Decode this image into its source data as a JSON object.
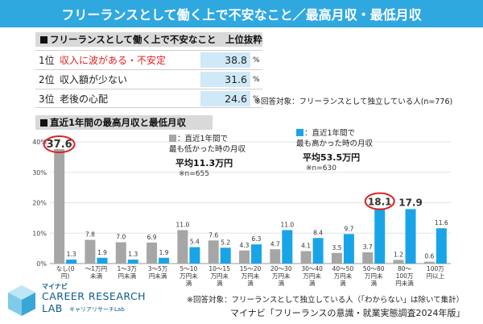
{
  "banner": {
    "title": "フリーランスとして働く上で不安なこと／最高月収・最低月収"
  },
  "ranking": {
    "heading": "フリーランスとして働く上で不安なこと　上位抜粋",
    "rows": [
      {
        "rank": "1位",
        "label": "収入に波がある・不安定",
        "value": "38.8",
        "unit": "%"
      },
      {
        "rank": "2位",
        "label": "収入額が少ない",
        "value": "31.6",
        "unit": "%"
      },
      {
        "rank": "3位",
        "label": "老後の心配",
        "value": "24.6",
        "unit": "%"
      }
    ],
    "note": "※回答対象：フリーランスとして独立している人(n=776)"
  },
  "chart_section": {
    "heading": "直近1年間の最高月収と最低月収"
  },
  "chart_data": {
    "type": "bar",
    "title": "直近1年間の最高月収と最低月収",
    "categories": [
      [
        "なし(0",
        "円)"
      ],
      [
        "～1万円",
        "未満"
      ],
      [
        "1～3万",
        "円未満"
      ],
      [
        "3～5万",
        "円未満"
      ],
      [
        "5～10",
        "万円未",
        "満"
      ],
      [
        "10～15",
        "万円未",
        "満"
      ],
      [
        "15～20",
        "万円未",
        "満"
      ],
      [
        "20～30",
        "万円未",
        "満"
      ],
      [
        "30～40",
        "万円未",
        "満"
      ],
      [
        "40～50",
        "万円未",
        "満"
      ],
      [
        "50～80",
        "万円未",
        "満"
      ],
      [
        "80～",
        "100万",
        "円未満"
      ],
      [
        "100万",
        "円以上"
      ]
    ],
    "series": [
      {
        "name": "直近1年間で最も低かった時の月収",
        "color": "#a6a6a6",
        "values": [
          37.6,
          7.8,
          7.0,
          6.9,
          11.0,
          7.6,
          4.3,
          4.7,
          4.1,
          3.5,
          3.7,
          1.2,
          0.6
        ],
        "labels": [
          "37.6",
          "7.8",
          "7.0",
          "6.9",
          "11.0",
          "7.6",
          "4.3",
          "4.7",
          "4.1",
          "3.5",
          "3.7",
          "1.2",
          "0.6"
        ]
      },
      {
        "name": "直近1年間で最も高かった時の月収",
        "color": "#19a4e8",
        "values": [
          1.3,
          1.9,
          1.3,
          1.9,
          5.4,
          5.2,
          6.3,
          11.0,
          8.4,
          9.7,
          18.1,
          17.9,
          11.6
        ],
        "labels": [
          "1.3",
          "1.9",
          "1.3",
          "1.9",
          "5.4",
          "5.2",
          "6.3",
          "11.0",
          "8.4",
          "9.7",
          "18.1",
          "17.9",
          "11.6"
        ]
      }
    ],
    "yticks": [
      "0%",
      "10%",
      "20%",
      "30%",
      "40%"
    ],
    "ylim": [
      0,
      40
    ],
    "legend_low": {
      "line1": "：直近1年間で",
      "line2": "最も低かった時の月収",
      "avg": "平均11.3万円",
      "n": "※n=655"
    },
    "legend_high": {
      "line1": "：直近1年間で",
      "line2": "最も高かった時の月収",
      "avg": "平均53.5万円",
      "n": "※n=630"
    },
    "highlights": [
      "37.6",
      "18.1"
    ]
  },
  "footer": {
    "note1": "※回答対象：フリーランスとして独立している人（「わからない」は除いて集計）",
    "note2": "マイナビ「フリーランスの意識・就業実態調査2024年版」"
  },
  "logo": {
    "brand": "マイナビ",
    "line1": "CAREER RESEARCH",
    "line2": "LAB",
    "line3": "キャリアリサーチLab"
  },
  "colors": {
    "banner": "#2fa8e0",
    "low": "#a6a6a6",
    "high": "#19a4e8",
    "highlight": "#e02020"
  }
}
